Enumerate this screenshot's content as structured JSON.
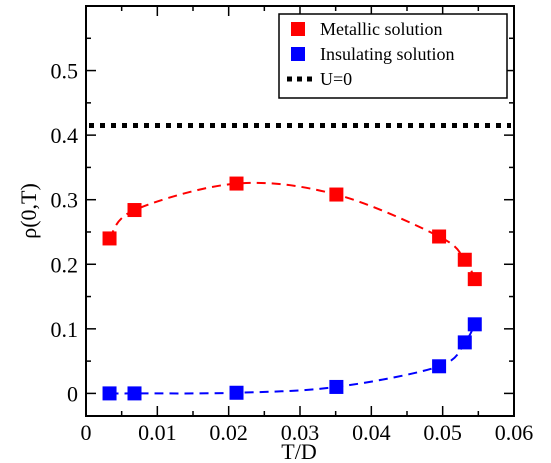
{
  "chart_data": {
    "type": "scatter",
    "xlabel": "T/D",
    "ylabel": "ρ(0,T)",
    "xlim": [
      0,
      0.06
    ],
    "ylim": [
      -0.035,
      0.6
    ],
    "xticks": [
      0,
      0.01,
      0.02,
      0.03,
      0.04,
      0.05,
      0.06
    ],
    "xtick_labels": [
      "0",
      "0.01",
      "0.02",
      "0.03",
      "0.04",
      "0.05",
      "0.06"
    ],
    "yticks": [
      0,
      0.1,
      0.2,
      0.3,
      0.4,
      0.5
    ],
    "ytick_labels": [
      "0",
      "0.1",
      "0.2",
      "0.3",
      "0.4",
      "0.5"
    ],
    "legend_position": "top-right",
    "grid": false,
    "series": [
      {
        "name": "Metallic solution",
        "color": "#ff0000",
        "marker": "square",
        "line": "dashed",
        "x": [
          0.0033,
          0.0068,
          0.0211,
          0.0351,
          0.0495,
          0.0531,
          0.0545
        ],
        "y": [
          0.24,
          0.284,
          0.325,
          0.308,
          0.243,
          0.207,
          0.177
        ]
      },
      {
        "name": "Insulating solution",
        "color": "#0000ff",
        "marker": "square",
        "line": "dashed",
        "x": [
          0.0033,
          0.0068,
          0.0211,
          0.0351,
          0.0495,
          0.0531,
          0.0545
        ],
        "y": [
          0.0,
          0.0,
          0.001,
          0.01,
          0.042,
          0.079,
          0.107
        ]
      },
      {
        "name": "U=0",
        "color": "#000000",
        "marker": "none",
        "line": "dotted",
        "x": [
          0,
          0.06
        ],
        "y": [
          0.415,
          0.415
        ]
      }
    ]
  }
}
